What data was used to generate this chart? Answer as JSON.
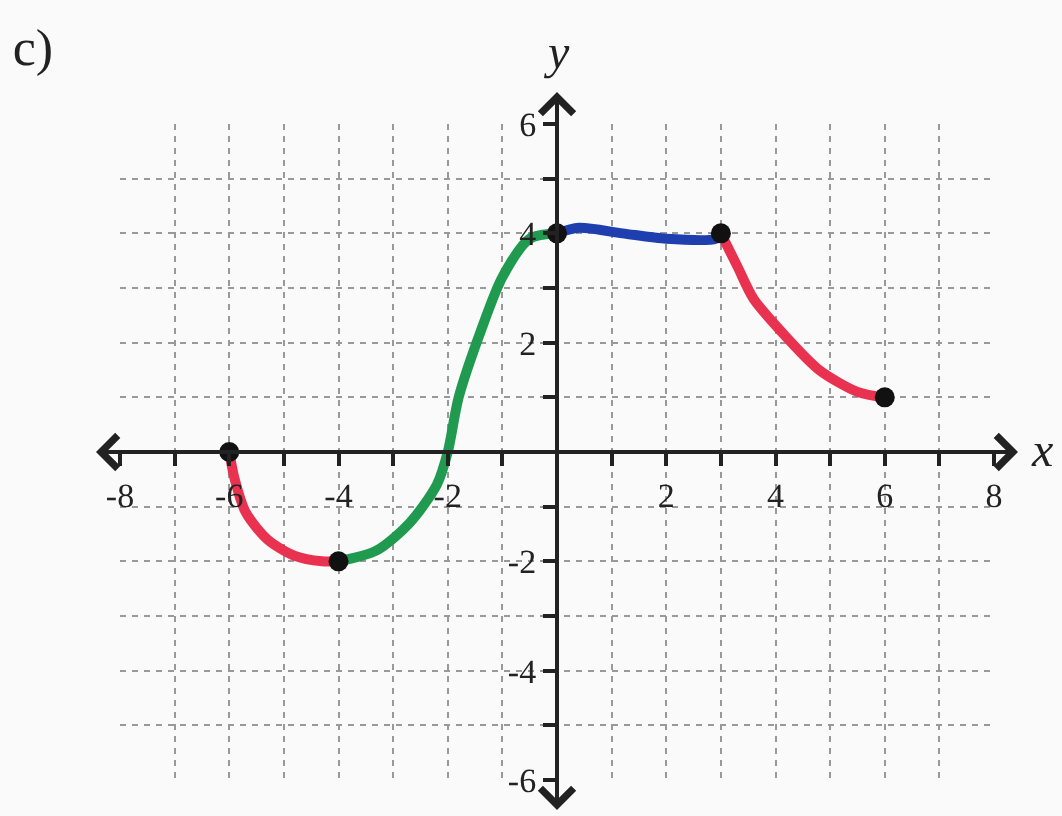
{
  "chart_data": {
    "type": "line",
    "title": "c)",
    "xlabel": "x",
    "ylabel": "y",
    "xlim": [
      -8,
      8
    ],
    "ylim": [
      -6,
      6
    ],
    "xticks": [
      -8,
      {
        "value": -7,
        "label": null
      },
      -6,
      {
        "value": -5,
        "label": null
      },
      -4,
      {
        "value": -3,
        "label": null
      },
      -2,
      {
        "value": -1,
        "label": null
      },
      {
        "value": 1,
        "label": null
      },
      2,
      {
        "value": 3,
        "label": null
      },
      4,
      {
        "value": 5,
        "label": null
      },
      6,
      {
        "value": 7,
        "label": null
      },
      8
    ],
    "yticks": [
      -6,
      {
        "value": -5,
        "label": null
      },
      -4,
      {
        "value": -3,
        "label": null
      },
      -2,
      {
        "value": -1,
        "label": null
      },
      {
        "value": 1,
        "label": null
      },
      2,
      {
        "value": 3,
        "label": null
      },
      4,
      {
        "value": 5,
        "label": null
      },
      6
    ],
    "grid": true,
    "line_style": "solid",
    "series": [
      {
        "color": "#e8324f",
        "marker": "none",
        "x": [
          -6,
          -5.9,
          -5.7,
          -5.3,
          -4.8,
          -4.3,
          -4
        ],
        "values": [
          0,
          -0.5,
          -1.1,
          -1.6,
          -1.9,
          -2.0,
          -2
        ]
      },
      {
        "color": "#1f9a4f",
        "marker": "none",
        "x": [
          -4,
          -3.3,
          -2.7,
          -2.2,
          -2,
          -1.8,
          -1.4,
          -1.0,
          -0.5,
          0
        ],
        "values": [
          -2,
          -1.8,
          -1.3,
          -0.6,
          0,
          1.0,
          2.2,
          3.2,
          3.9,
          4
        ]
      },
      {
        "color": "#1f3fae",
        "marker": "none",
        "x": [
          0,
          0.4,
          1.2,
          2,
          2.9,
          3
        ],
        "values": [
          4,
          4.1,
          4.0,
          3.9,
          3.9,
          4
        ]
      },
      {
        "color": "#e8324f",
        "marker": "none",
        "x": [
          3,
          3.3,
          3.6,
          4.2,
          4.8,
          5.5,
          6
        ],
        "values": [
          4,
          3.4,
          2.8,
          2.1,
          1.5,
          1.1,
          1
        ]
      },
      {
        "type": "scatter",
        "color": "#111111",
        "marker": "circle",
        "x": [
          -6,
          -4,
          0,
          3,
          6
        ],
        "values": [
          0,
          -2,
          4,
          4,
          1
        ]
      }
    ]
  }
}
